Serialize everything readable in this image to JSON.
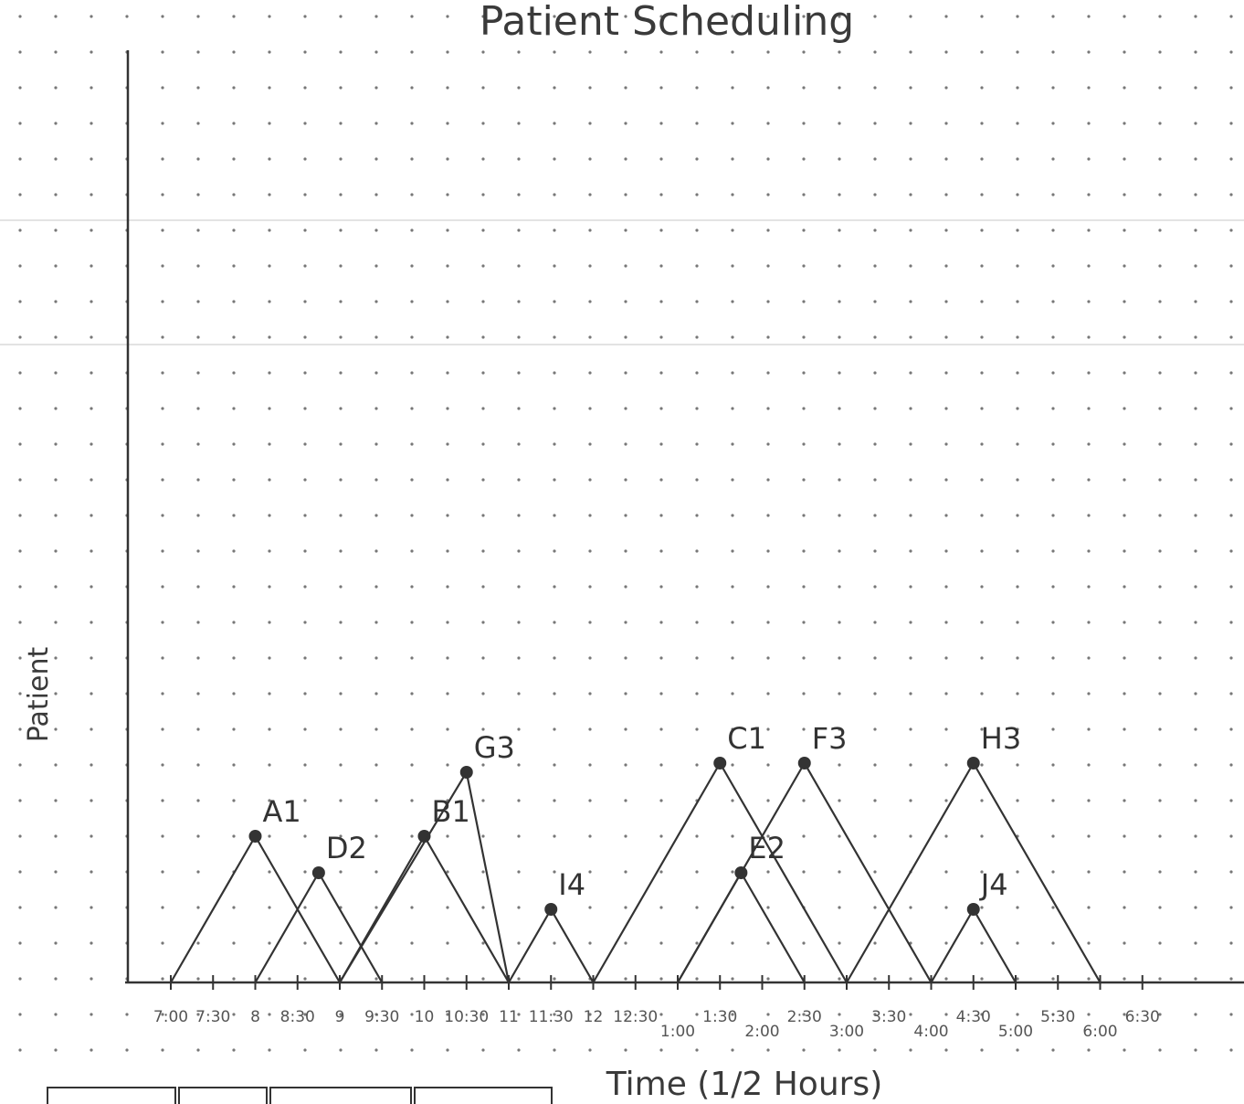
{
  "chart_data": {
    "type": "line",
    "title": "Patient Scheduling",
    "xlabel": "Time (1/2 Hours)",
    "ylabel": "Patient",
    "tick_labels_upper": [
      "7:00",
      "7:30",
      "8",
      "8:30",
      "9",
      "9:30",
      "10",
      "10:30",
      "11",
      "11:30",
      "12",
      "12:30",
      "1:30",
      "2:30",
      "3:30",
      "4:30",
      "5:30",
      "6:30"
    ],
    "tick_labels_lower": [
      "1:00",
      "2:00",
      "3:00",
      "4:00",
      "5:00",
      "6:00"
    ],
    "x_unit": "hours after 7:00",
    "xlim": [
      0,
      11.5
    ],
    "ylim": [
      0,
      12
    ],
    "grid": "dotted",
    "patients": [
      {
        "label": "A1",
        "start": 0.0,
        "peak": 1.0,
        "end": 2.0,
        "height": 4.0
      },
      {
        "label": "D2",
        "start": 1.0,
        "peak": 1.75,
        "end": 2.5,
        "height": 3.0
      },
      {
        "label": "B1",
        "start": 2.0,
        "peak": 3.0,
        "end": 4.0,
        "height": 4.0
      },
      {
        "label": "G3",
        "start": 2.0,
        "peak": 3.5,
        "end": 4.0,
        "height": 5.75
      },
      {
        "label": "I4",
        "start": 4.0,
        "peak": 4.5,
        "end": 5.0,
        "height": 2.0
      },
      {
        "label": "C1",
        "start": 5.0,
        "peak": 6.5,
        "end": 8.0,
        "height": 6.0
      },
      {
        "label": "E2",
        "start": 6.0,
        "peak": 6.75,
        "end": 7.5,
        "height": 3.0
      },
      {
        "label": "F3",
        "start": 6.0,
        "peak": 7.5,
        "end": 9.0,
        "height": 6.0
      },
      {
        "label": "H3",
        "start": 8.0,
        "peak": 9.5,
        "end": 11.0,
        "height": 6.0
      },
      {
        "label": "J4",
        "start": 9.0,
        "peak": 9.5,
        "end": 10.0,
        "height": 2.0
      }
    ]
  }
}
